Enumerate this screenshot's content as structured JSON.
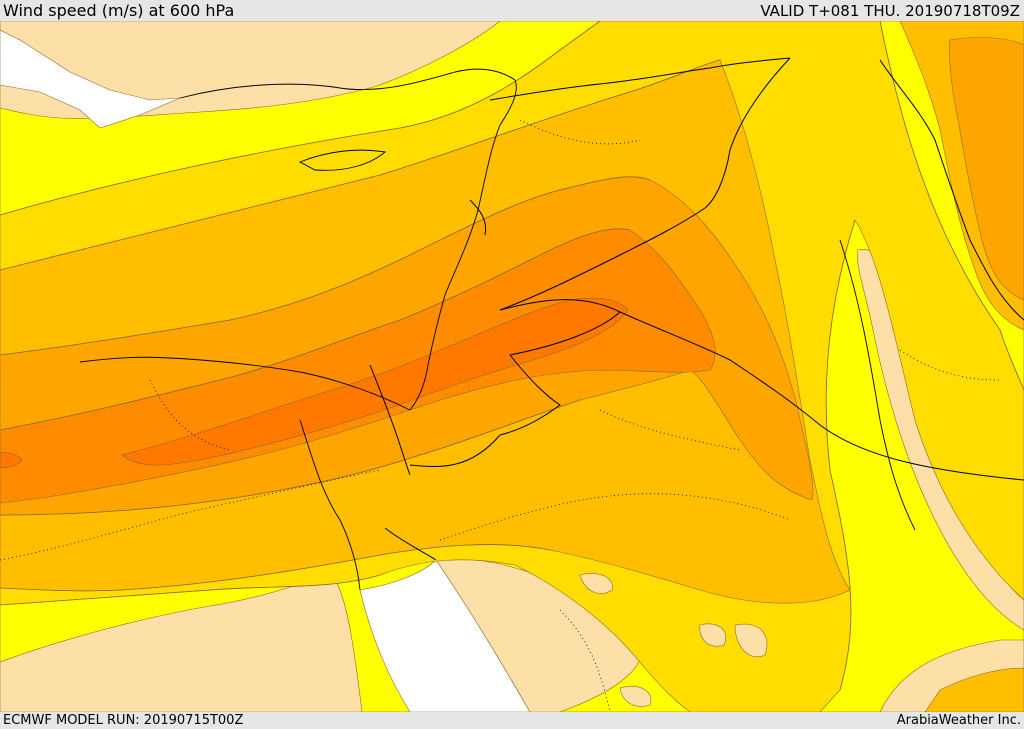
{
  "header": {
    "title": "Wind speed (m/s) at 600 hPa",
    "valid": "VALID T+081 THU. 20190718T09Z"
  },
  "footer": {
    "model_run": "ECMWF MODEL RUN: 20190715T00Z",
    "credit": "ArabiaWeather Inc."
  },
  "map": {
    "field": "wind speed",
    "level": "600 hPa",
    "colors": {
      "no_fill": "#ffffff",
      "light": "#fde0a8",
      "yellow": "#ffff00",
      "gold": "#ffdd00",
      "amber": "#ffbf00",
      "orange_light": "#ffa500",
      "orange": "#ff8c00",
      "orange_dark": "#ff7800",
      "border_line": "#000000",
      "contour_line": "#8c6a2e"
    }
  }
}
